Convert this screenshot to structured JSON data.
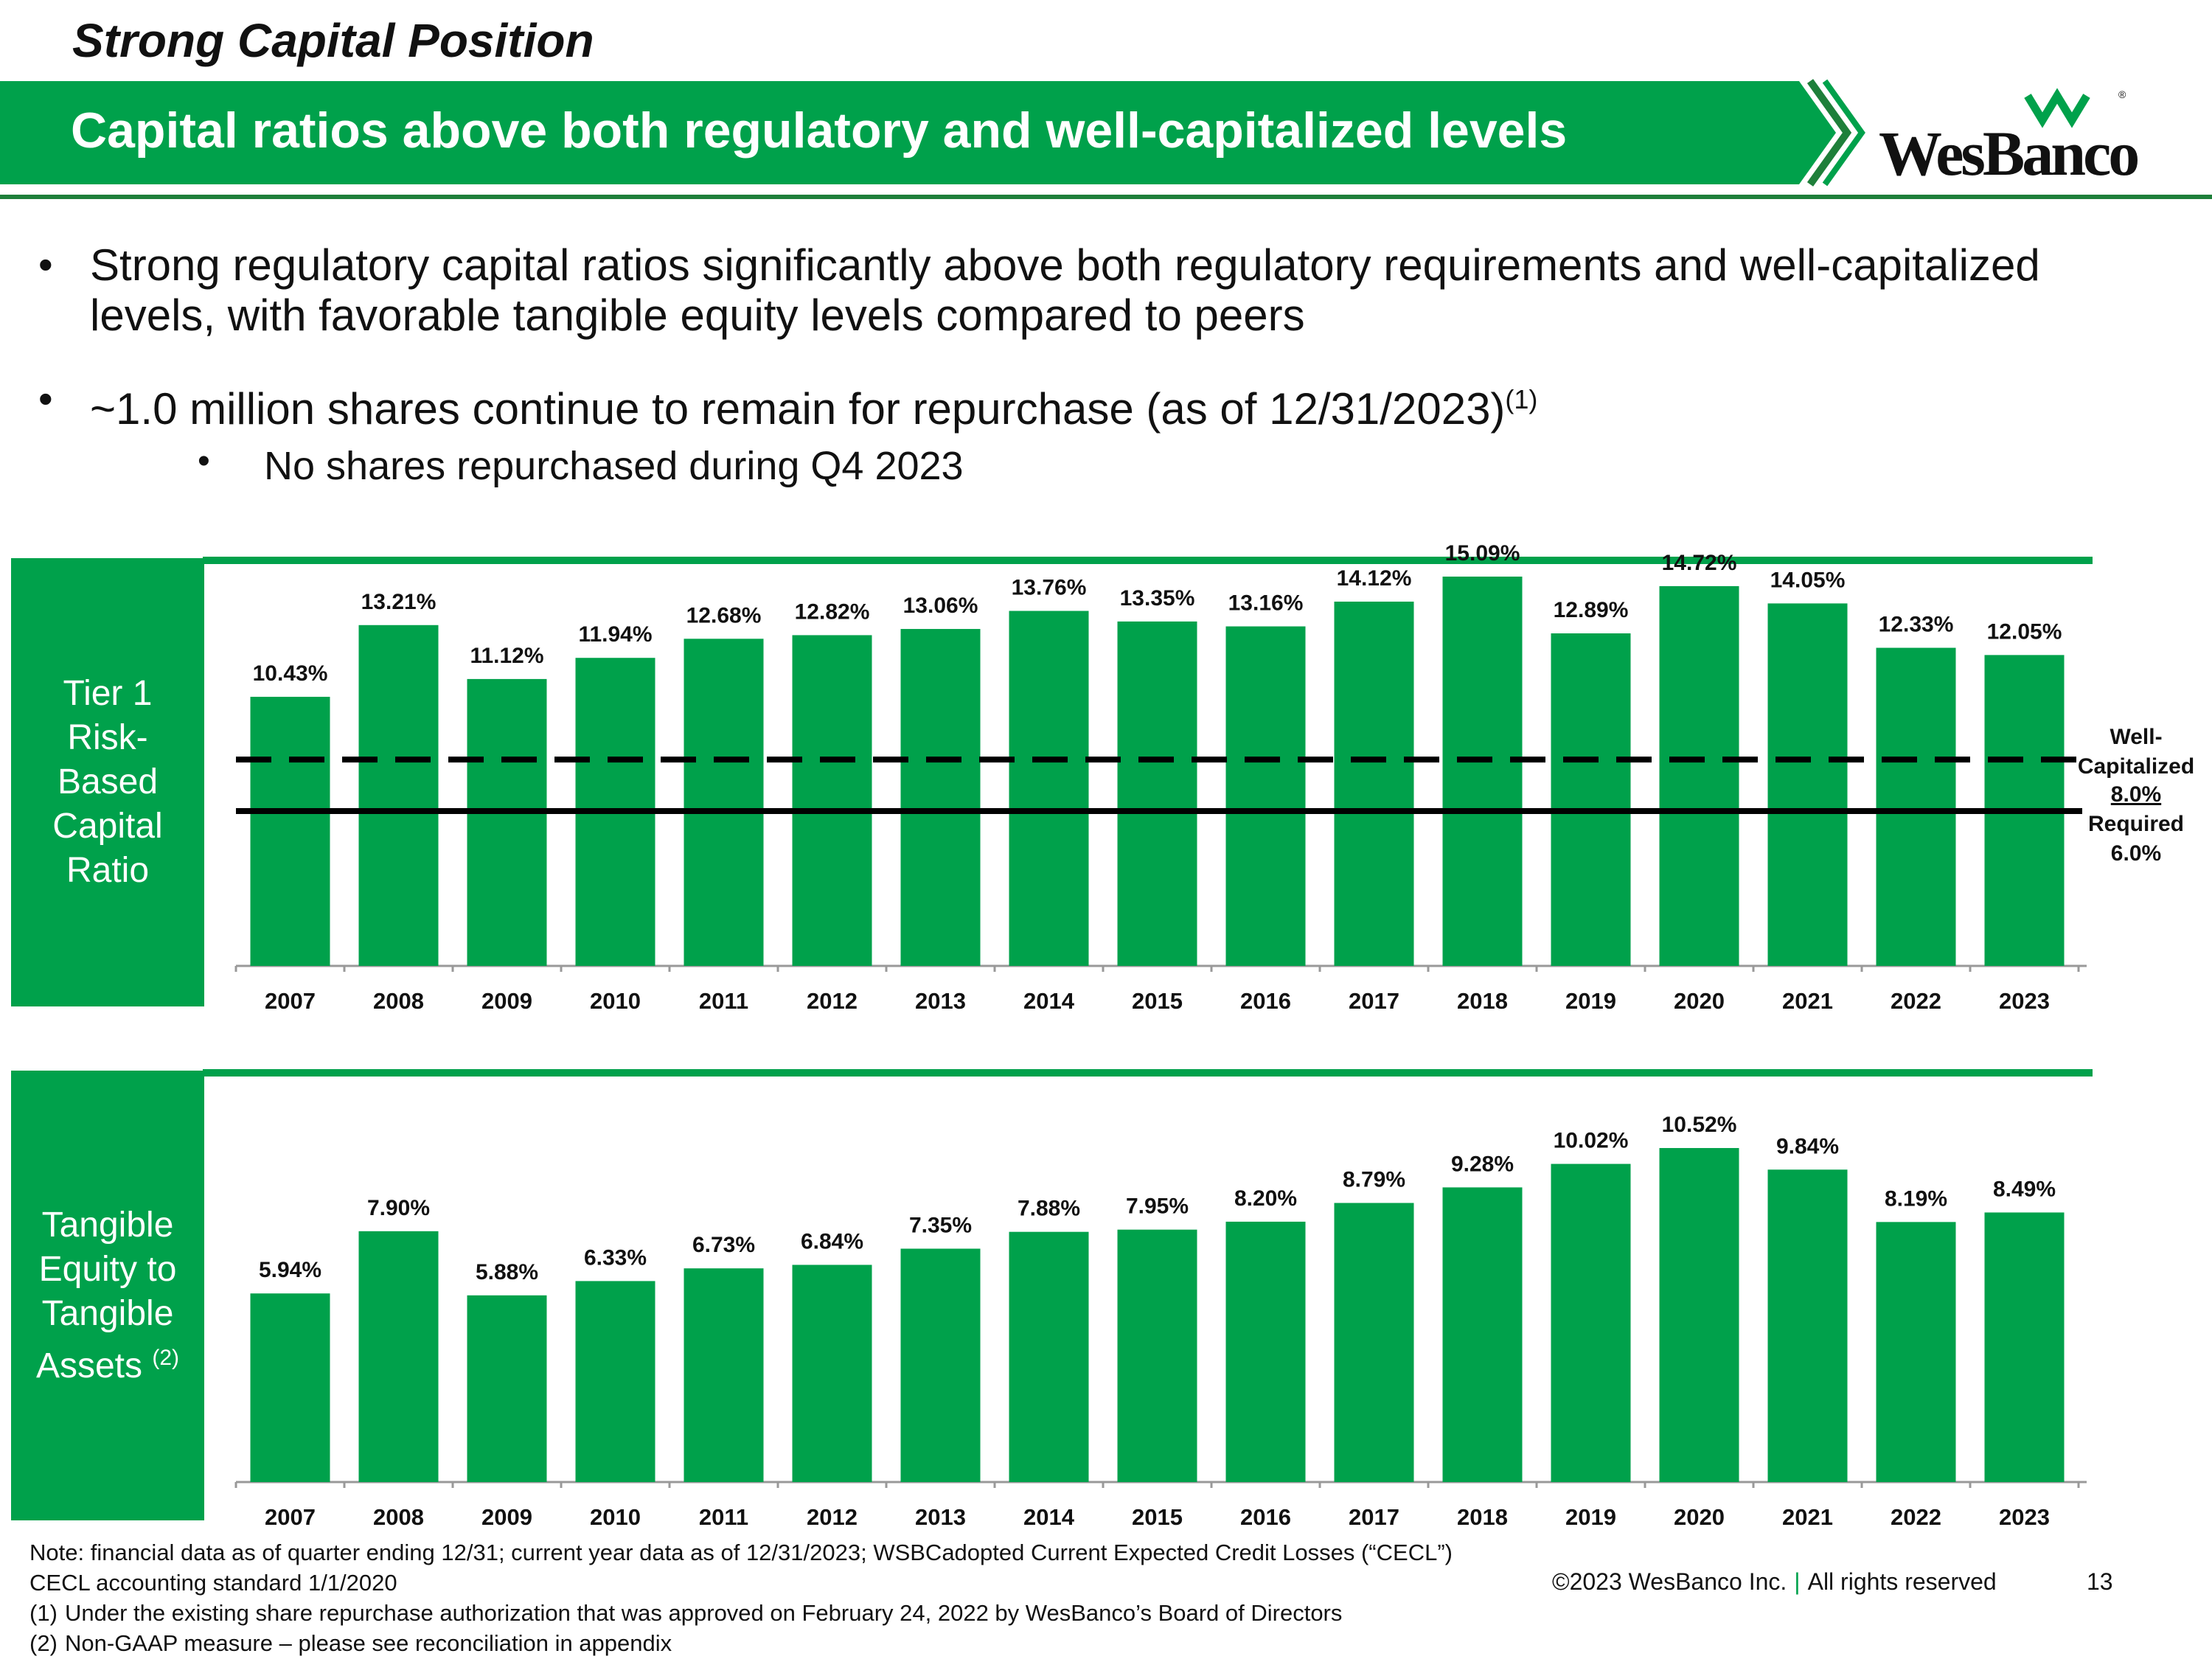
{
  "header": {
    "section_title": "Strong Capital Position",
    "banner_title": "Capital ratios above both regulatory and well-capitalized levels",
    "logo_text": "WesBanco",
    "logo_reg": "®"
  },
  "colors": {
    "brand_green": "#00A14B",
    "bar_green": "#00A14B",
    "dark_green": "#1E7F3A"
  },
  "bullets": [
    {
      "text": "Strong regulatory capital ratios significantly above both regulatory requirements and well-capitalized levels, with favorable tangible equity levels compared to peers"
    },
    {
      "text": "~1.0 million shares continue to remain for repurchase (as of 12/31/2023)",
      "sup": "(1)"
    }
  ],
  "sub_bullets": [
    {
      "text": "No shares repurchased during Q4 2023"
    }
  ],
  "panels": {
    "tier1": {
      "lines": [
        "Tier 1",
        "Risk-",
        "Based",
        "Capital",
        "Ratio"
      ]
    },
    "tangible": {
      "lines": [
        "Tangible",
        "Equity to",
        "Tangible",
        "Assets"
      ],
      "sup": "(2)"
    }
  },
  "chart_data": [
    {
      "type": "bar",
      "title": "Tier 1 Risk-Based Capital Ratio",
      "categories": [
        "2007",
        "2008",
        "2009",
        "2010",
        "2011",
        "2012",
        "2013",
        "2014",
        "2015",
        "2016",
        "2017",
        "2018",
        "2019",
        "2020",
        "2021",
        "2022",
        "2023"
      ],
      "values": [
        10.43,
        13.21,
        11.12,
        11.94,
        12.68,
        12.82,
        13.06,
        13.76,
        13.35,
        13.16,
        14.12,
        15.09,
        12.89,
        14.72,
        14.05,
        12.33,
        12.05
      ],
      "labels": [
        "10.43%",
        "13.21%",
        "11.12%",
        "11.94%",
        "12.68%",
        "12.82%",
        "13.06%",
        "13.76%",
        "13.35%",
        "13.16%",
        "14.12%",
        "15.09%",
        "12.89%",
        "14.72%",
        "14.05%",
        "12.33%",
        "12.05%"
      ],
      "ylim": [
        0,
        17
      ],
      "reference_lines": [
        {
          "name": "Well-Capitalized",
          "value": 8.0,
          "value_label": "8.0%",
          "style": "dashed",
          "label_lines": [
            "Well-",
            "Capitalized"
          ]
        },
        {
          "name": "Required",
          "value": 6.0,
          "value_label": "6.0%",
          "style": "solid",
          "label_lines": [
            "Required"
          ]
        }
      ]
    },
    {
      "type": "bar",
      "title": "Tangible Equity to Tangible Assets",
      "categories": [
        "2007",
        "2008",
        "2009",
        "2010",
        "2011",
        "2012",
        "2013",
        "2014",
        "2015",
        "2016",
        "2017",
        "2018",
        "2019",
        "2020",
        "2021",
        "2022",
        "2023"
      ],
      "values": [
        5.94,
        7.9,
        5.88,
        6.33,
        6.73,
        6.84,
        7.35,
        7.88,
        7.95,
        8.2,
        8.79,
        9.28,
        10.02,
        10.52,
        9.84,
        8.19,
        8.49
      ],
      "labels": [
        "5.94%",
        "7.90%",
        "5.88%",
        "6.33%",
        "6.73%",
        "6.84%",
        "7.35%",
        "7.88%",
        "7.95%",
        "8.20%",
        "8.79%",
        "9.28%",
        "10.02%",
        "10.52%",
        "9.84%",
        "8.19%",
        "8.49%"
      ],
      "ylim": [
        0,
        11.7
      ]
    }
  ],
  "notes": {
    "note": "Note: financial data as of quarter ending 12/31; current year data as of 12/31/2023; WSBCadopted Current Expected Credit Losses (“CECL”) CECL accounting standard 1/1/2020",
    "footnotes": [
      {
        "num": "(1)",
        "text": "Under the existing share repurchase authorization that was approved on February 24, 2022 by WesBanco’s Board of Directors"
      },
      {
        "num": "(2)",
        "text": "Non-GAAP measure – please see reconciliation in appendix"
      }
    ]
  },
  "footer": {
    "copyright": "©2023 WesBanco Inc.",
    "separator": "|",
    "rights": "All rights reserved",
    "page_number": "13"
  }
}
